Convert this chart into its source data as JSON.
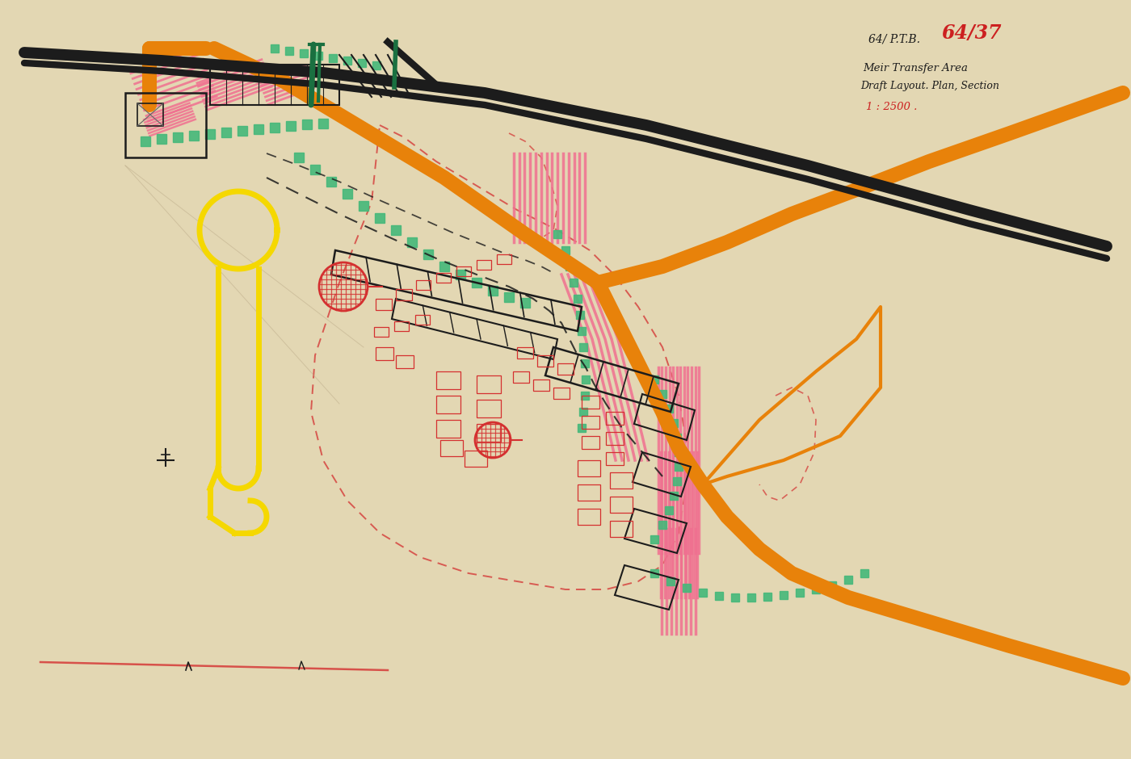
{
  "paper_color": "#e6dab8",
  "colors": {
    "black": "#1c1c1c",
    "orange": "#e8820a",
    "pink": "#f07090",
    "green": "#45b87a",
    "yellow": "#f5d800",
    "red": "#d43030",
    "teal": "#1a7040",
    "gray": "#888888"
  },
  "text": {
    "ref1": "64/ P.T.B.",
    "ref2": "64/37",
    "line1": "Meir Transfer Area",
    "line2": "Draft Layout. Plan, Section",
    "scale": "1 : 2500 ."
  }
}
